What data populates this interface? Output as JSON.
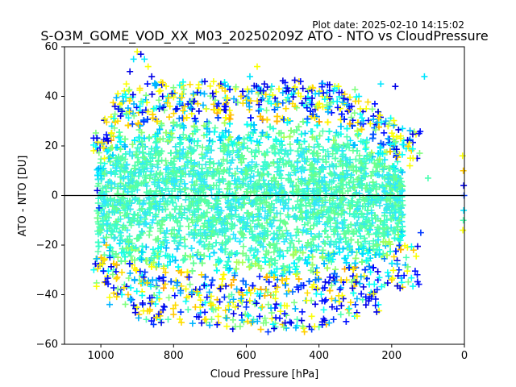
{
  "chart_data": {
    "type": "scatter",
    "title": "S-O3M_GOME_VOD_XX_M03_20250209Z ATO - NTO vs CloudPressure",
    "subtitle": "Plot date: 2025-02-10 14:15:02",
    "xlabel": "Cloud Pressure [hPa]",
    "ylabel": "ATO - NTO [DU]",
    "xlim": [
      1100,
      0
    ],
    "ylim": [
      -60,
      60
    ],
    "x_inverted": true,
    "x_ticks": [
      1000,
      800,
      600,
      400,
      200,
      0
    ],
    "y_ticks": [
      -60,
      -40,
      -20,
      0,
      20,
      40,
      60
    ],
    "reference_line_y": 0,
    "marker": "+",
    "grid": false,
    "colormap": "jet",
    "series": [
      {
        "values": [
          [
            1010,
            2
          ],
          [
            1005,
            -5
          ],
          [
            1000,
            8
          ],
          [
            995,
            -12
          ],
          [
            990,
            15
          ],
          [
            985,
            -20
          ],
          [
            980,
            22
          ],
          [
            975,
            -25
          ],
          [
            970,
            28
          ],
          [
            965,
            -30
          ],
          [
            960,
            30
          ],
          [
            955,
            -33
          ],
          [
            950,
            35
          ],
          [
            945,
            -38
          ],
          [
            940,
            40
          ],
          [
            935,
            -36
          ],
          [
            930,
            45
          ],
          [
            925,
            -40
          ],
          [
            920,
            50
          ],
          [
            915,
            -42
          ],
          [
            910,
            55
          ],
          [
            905,
            -45
          ],
          [
            900,
            58
          ],
          [
            895,
            -48
          ],
          [
            890,
            57
          ],
          [
            885,
            -44
          ],
          [
            880,
            55
          ],
          [
            875,
            -50
          ],
          [
            870,
            52
          ],
          [
            865,
            -46
          ],
          [
            860,
            48
          ],
          [
            855,
            -52
          ],
          [
            850,
            45
          ],
          [
            845,
            -49
          ],
          [
            840,
            42
          ],
          [
            835,
            -47
          ],
          [
            830,
            40
          ],
          [
            825,
            -45
          ],
          [
            820,
            38
          ],
          [
            815,
            -50
          ],
          [
            810,
            36
          ],
          [
            800,
            -48
          ],
          [
            790,
            35
          ],
          [
            780,
            -47
          ],
          [
            770,
            34
          ],
          [
            760,
            -46
          ],
          [
            750,
            33
          ],
          [
            740,
            -45
          ],
          [
            730,
            34
          ],
          [
            720,
            -44
          ],
          [
            710,
            35
          ],
          [
            700,
            -43
          ],
          [
            690,
            46
          ],
          [
            680,
            -42
          ],
          [
            670,
            45
          ],
          [
            660,
            -41
          ],
          [
            650,
            44
          ],
          [
            640,
            -40
          ],
          [
            630,
            43
          ],
          [
            620,
            -39
          ],
          [
            610,
            42
          ],
          [
            600,
            -45
          ],
          [
            590,
            48
          ],
          [
            580,
            -50
          ],
          [
            570,
            52
          ],
          [
            560,
            -54
          ],
          [
            550,
            45
          ],
          [
            540,
            -55
          ],
          [
            530,
            44
          ],
          [
            520,
            -53
          ],
          [
            510,
            43
          ],
          [
            500,
            -52
          ],
          [
            490,
            42
          ],
          [
            480,
            -51
          ],
          [
            470,
            41
          ],
          [
            460,
            -50
          ],
          [
            450,
            40
          ],
          [
            440,
            -55
          ],
          [
            430,
            42
          ],
          [
            420,
            -54
          ],
          [
            410,
            41
          ],
          [
            400,
            -53
          ],
          [
            390,
            40
          ],
          [
            380,
            -52
          ],
          [
            370,
            39
          ],
          [
            360,
            -50
          ],
          [
            350,
            38
          ],
          [
            340,
            -48
          ],
          [
            330,
            37
          ],
          [
            320,
            -46
          ],
          [
            310,
            36
          ],
          [
            300,
            -44
          ],
          [
            290,
            40
          ],
          [
            280,
            -42
          ],
          [
            270,
            35
          ],
          [
            260,
            -40
          ],
          [
            250,
            32
          ],
          [
            240,
            -38
          ],
          [
            230,
            45
          ],
          [
            220,
            -36
          ],
          [
            210,
            28
          ],
          [
            200,
            -34
          ],
          [
            190,
            44
          ],
          [
            180,
            -30
          ],
          [
            170,
            27
          ],
          [
            160,
            -25
          ],
          [
            150,
            12
          ],
          [
            140,
            -22
          ],
          [
            130,
            15
          ],
          [
            120,
            -15
          ],
          [
            110,
            48
          ],
          [
            100,
            7
          ],
          [
            5,
            16
          ],
          [
            3,
            10
          ],
          [
            2,
            4
          ],
          [
            1,
            0
          ],
          [
            2,
            -6
          ],
          [
            3,
            -10
          ],
          [
            4,
            -14
          ]
        ]
      }
    ],
    "dense_region": {
      "x_range": [
        1010,
        170
      ],
      "y_min_profile": [
        [
          1010,
          -25
        ],
        [
          950,
          -30
        ],
        [
          850,
          -33
        ],
        [
          750,
          -35
        ],
        [
          650,
          -36
        ],
        [
          550,
          -37
        ],
        [
          450,
          -36
        ],
        [
          350,
          -34
        ],
        [
          280,
          -32
        ],
        [
          220,
          -28
        ],
        [
          170,
          -20
        ]
      ],
      "y_max_profile": [
        [
          1010,
          15
        ],
        [
          950,
          30
        ],
        [
          850,
          34
        ],
        [
          750,
          34
        ],
        [
          650,
          34
        ],
        [
          550,
          34
        ],
        [
          450,
          35
        ],
        [
          350,
          33
        ],
        [
          280,
          30
        ],
        [
          220,
          22
        ],
        [
          170,
          15
        ]
      ]
    }
  }
}
